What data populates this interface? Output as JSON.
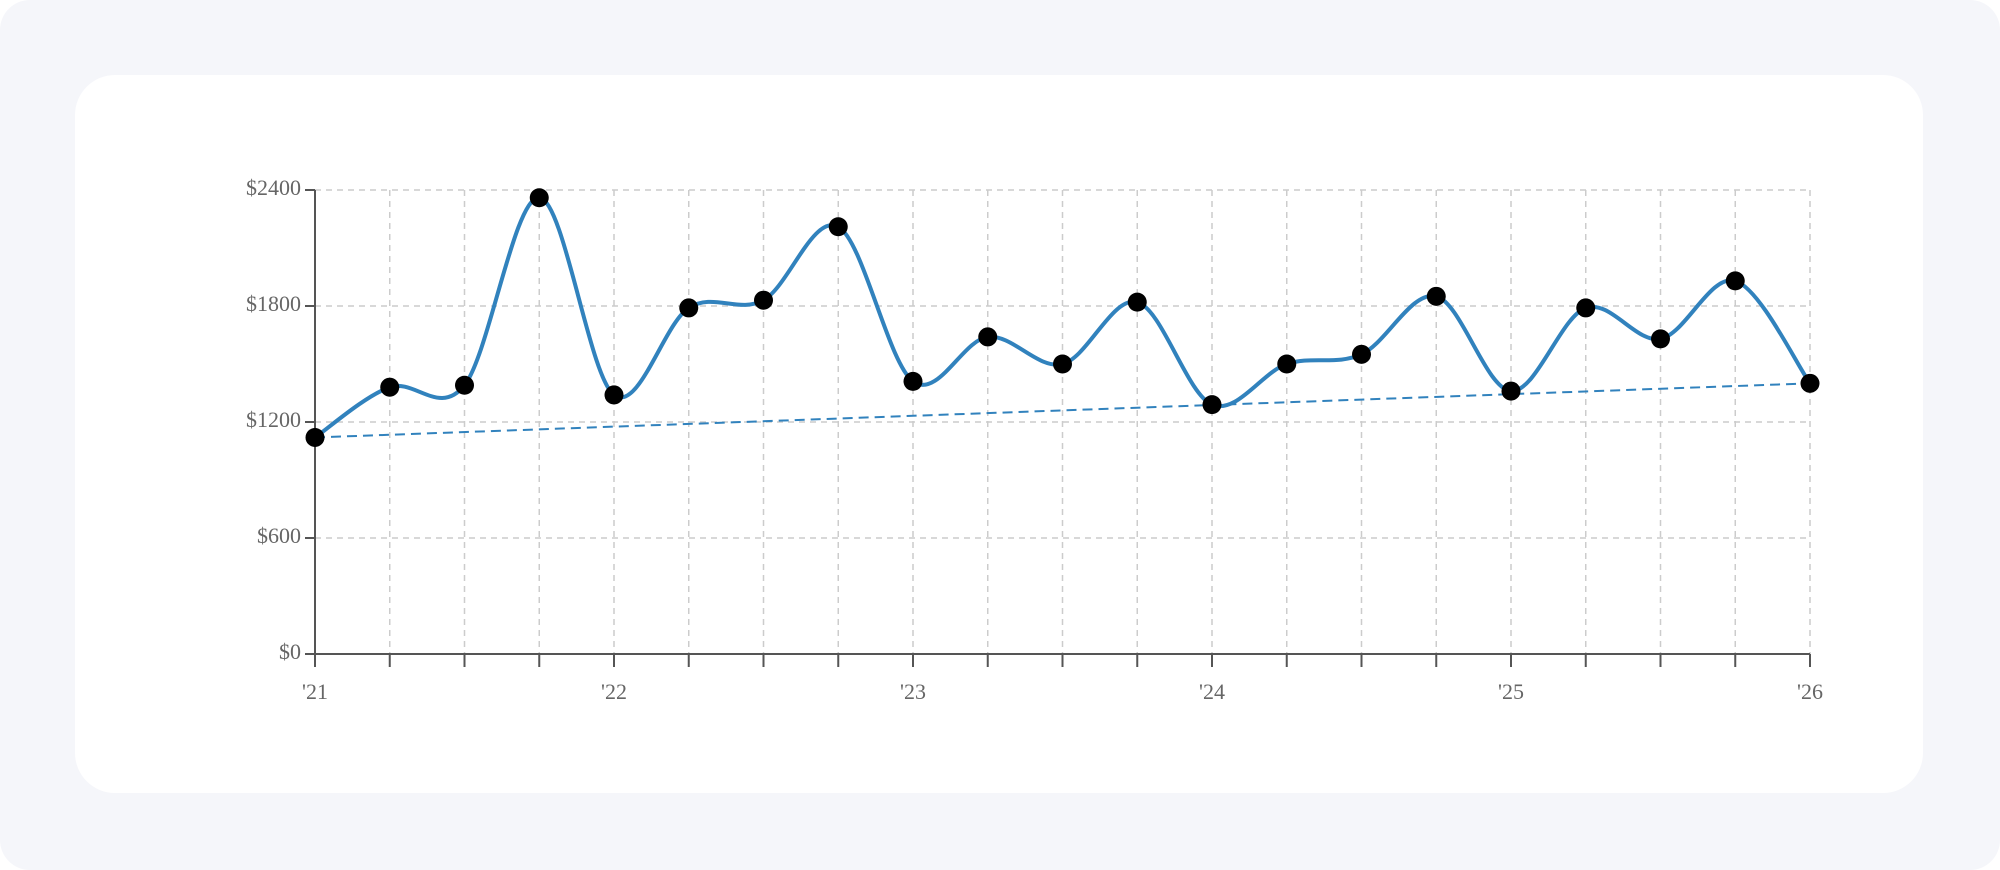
{
  "chart_data": {
    "type": "line",
    "categories": [
      "'21",
      null,
      null,
      null,
      "'22",
      null,
      null,
      null,
      "'23",
      null,
      null,
      null,
      "'24",
      null,
      null,
      null,
      "'25",
      null,
      null,
      null,
      "'26"
    ],
    "series": [
      {
        "color": "#3182bd",
        "values": [
          1120,
          1380,
          1390,
          2360,
          1340,
          1790,
          1830,
          2210,
          1410,
          1640,
          1500,
          1820,
          1290,
          1500,
          1550,
          1850,
          1360,
          1790,
          1630,
          1930,
          1400
        ]
      }
    ],
    "trendline": {
      "color": "#3182bd",
      "values": [
        1120,
        1400
      ]
    },
    "marker_color": "#000000",
    "ylim": [
      0,
      2400
    ],
    "yticks": [
      {
        "value": 0,
        "label": "$0"
      },
      {
        "value": 600,
        "label": "$600"
      },
      {
        "value": 1200,
        "label": "$1200"
      },
      {
        "value": 1800,
        "label": "$1800"
      },
      {
        "value": 2400,
        "label": "$2400"
      }
    ],
    "grid": true
  }
}
